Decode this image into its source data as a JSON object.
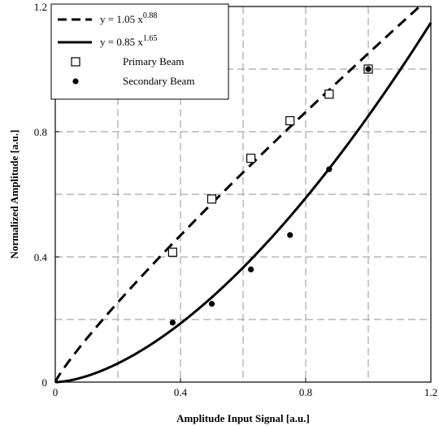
{
  "chart_data": {
    "type": "scatter",
    "xlabel": "Amplitude Input Signal [a.u.]",
    "ylabel": "Normalized Amplitude [a.u.]",
    "xlim": [
      0,
      1.2
    ],
    "ylim": [
      0,
      1.2
    ],
    "x_ticks": [
      "0",
      "0.4",
      "0.8",
      "1.2"
    ],
    "y_ticks": [
      "0",
      "0.4",
      "0.8",
      "1.2"
    ],
    "grid": true,
    "grid_style": "dashed",
    "legend_position": "top-left",
    "fits": [
      {
        "name": "y = 1.05 x^0.88",
        "coef": 1.05,
        "exp": 0.88,
        "style": "dashed",
        "color": "#000000",
        "label": {
          "lead": "y = 1.05 x",
          "sup": "0.88"
        }
      },
      {
        "name": "y = 0.85 x^1.65",
        "coef": 0.85,
        "exp": 1.65,
        "style": "solid",
        "color": "#000000",
        "label": {
          "lead": "y = 0.85 x",
          "sup": "1.65"
        }
      }
    ],
    "series": [
      {
        "name": "Primary Beam",
        "marker": "open-square",
        "x": [
          0.375,
          0.5,
          0.625,
          0.75,
          0.875,
          1.0
        ],
        "y": [
          0.415,
          0.585,
          0.715,
          0.835,
          0.92,
          1.0
        ]
      },
      {
        "name": "Secondary Beam",
        "marker": "filled-circle",
        "x": [
          0.375,
          0.5,
          0.625,
          0.75,
          0.875,
          1.0
        ],
        "y": [
          0.19,
          0.25,
          0.36,
          0.47,
          0.68,
          1.0
        ]
      }
    ]
  }
}
